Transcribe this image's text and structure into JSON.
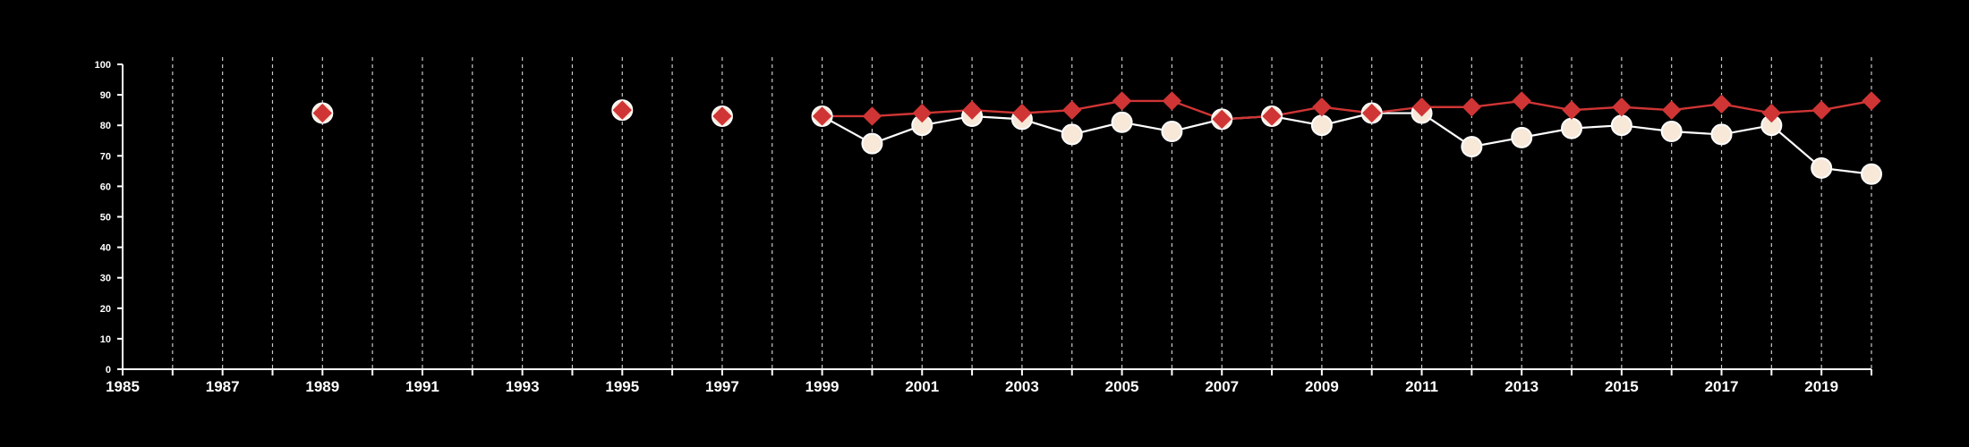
{
  "chart_data": {
    "type": "line",
    "title": "",
    "xlabel": "",
    "ylabel": "",
    "xlim": [
      1985,
      2020
    ],
    "ylim": [
      0,
      100
    ],
    "yticks": [
      0,
      10,
      20,
      30,
      40,
      50,
      60,
      70,
      80,
      90,
      100
    ],
    "xticks": [
      1985,
      1987,
      1989,
      1991,
      1993,
      1995,
      1997,
      1999,
      2001,
      2003,
      2005,
      2007,
      2009,
      2011,
      2013,
      2015,
      2017,
      2019
    ],
    "grid": "vertical dashed, yearly",
    "background": "#000000",
    "series": [
      {
        "marker": "circle",
        "color": "#ffffff",
        "fill": "#f7e8d8",
        "points": [
          [
            1989,
            84
          ],
          [
            1995,
            85
          ],
          [
            1997,
            83
          ],
          [
            1999,
            83
          ],
          [
            2000,
            74
          ],
          [
            2001,
            80
          ],
          [
            2002,
            83
          ],
          [
            2003,
            82
          ],
          [
            2004,
            77
          ],
          [
            2005,
            81
          ],
          [
            2006,
            78
          ],
          [
            2007,
            82
          ],
          [
            2008,
            83
          ],
          [
            2009,
            80
          ],
          [
            2010,
            84
          ],
          [
            2011,
            84
          ],
          [
            2012,
            73
          ],
          [
            2013,
            76
          ],
          [
            2014,
            79
          ],
          [
            2015,
            80
          ],
          [
            2016,
            78
          ],
          [
            2017,
            77
          ],
          [
            2018,
            80
          ],
          [
            2019,
            66
          ],
          [
            2020,
            64
          ]
        ]
      },
      {
        "marker": "diamond",
        "color": "#d03535",
        "points": [
          [
            1989,
            84
          ],
          [
            1995,
            85
          ],
          [
            1997,
            83
          ],
          [
            1999,
            83
          ],
          [
            2000,
            83
          ],
          [
            2001,
            84
          ],
          [
            2002,
            85
          ],
          [
            2003,
            84
          ],
          [
            2004,
            85
          ],
          [
            2005,
            88
          ],
          [
            2006,
            88
          ],
          [
            2007,
            82
          ],
          [
            2008,
            83
          ],
          [
            2009,
            86
          ],
          [
            2010,
            84
          ],
          [
            2011,
            86
          ],
          [
            2012,
            86
          ],
          [
            2013,
            88
          ],
          [
            2014,
            85
          ],
          [
            2015,
            86
          ],
          [
            2016,
            85
          ],
          [
            2017,
            87
          ],
          [
            2018,
            84
          ],
          [
            2019,
            85
          ],
          [
            2020,
            88
          ]
        ]
      }
    ]
  }
}
